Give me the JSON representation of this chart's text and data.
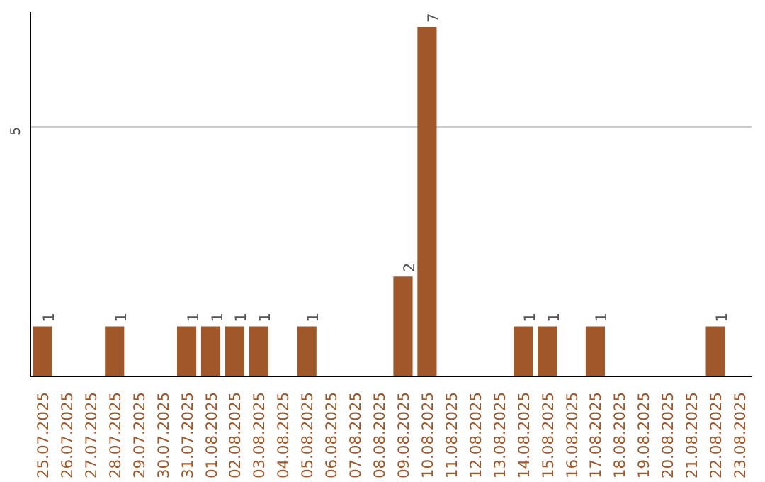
{
  "chart_data": {
    "type": "bar",
    "categories": [
      "25.07.2025",
      "26.07.2025",
      "27.07.2025",
      "28.07.2025",
      "29.07.2025",
      "30.07.2025",
      "31.07.2025",
      "01.08.2025",
      "02.08.2025",
      "03.08.2025",
      "04.08.2025",
      "05.08.2025",
      "06.08.2025",
      "07.08.2025",
      "08.08.2025",
      "09.08.2025",
      "10.08.2025",
      "11.08.2025",
      "12.08.2025",
      "13.08.2025",
      "14.08.2025",
      "15.08.2025",
      "16.08.2025",
      "17.08.2025",
      "18.08.2025",
      "19.08.2025",
      "20.08.2025",
      "21.08.2025",
      "22.08.2025",
      "23.08.2025"
    ],
    "values": [
      1,
      0,
      0,
      1,
      0,
      0,
      1,
      1,
      1,
      1,
      0,
      1,
      0,
      0,
      0,
      2,
      7,
      0,
      0,
      0,
      1,
      1,
      0,
      1,
      0,
      0,
      0,
      0,
      1,
      0
    ],
    "value_labels": [
      "1",
      null,
      null,
      "1",
      null,
      null,
      "1",
      "1",
      "1",
      "1",
      null,
      "1",
      null,
      null,
      null,
      "2",
      "7",
      null,
      null,
      null,
      "1",
      "1",
      null,
      "1",
      null,
      null,
      null,
      null,
      "1",
      null
    ],
    "color": "#a0572a",
    "ylim": [
      0,
      7.3
    ],
    "yticks": [
      5
    ],
    "grid": "y"
  }
}
